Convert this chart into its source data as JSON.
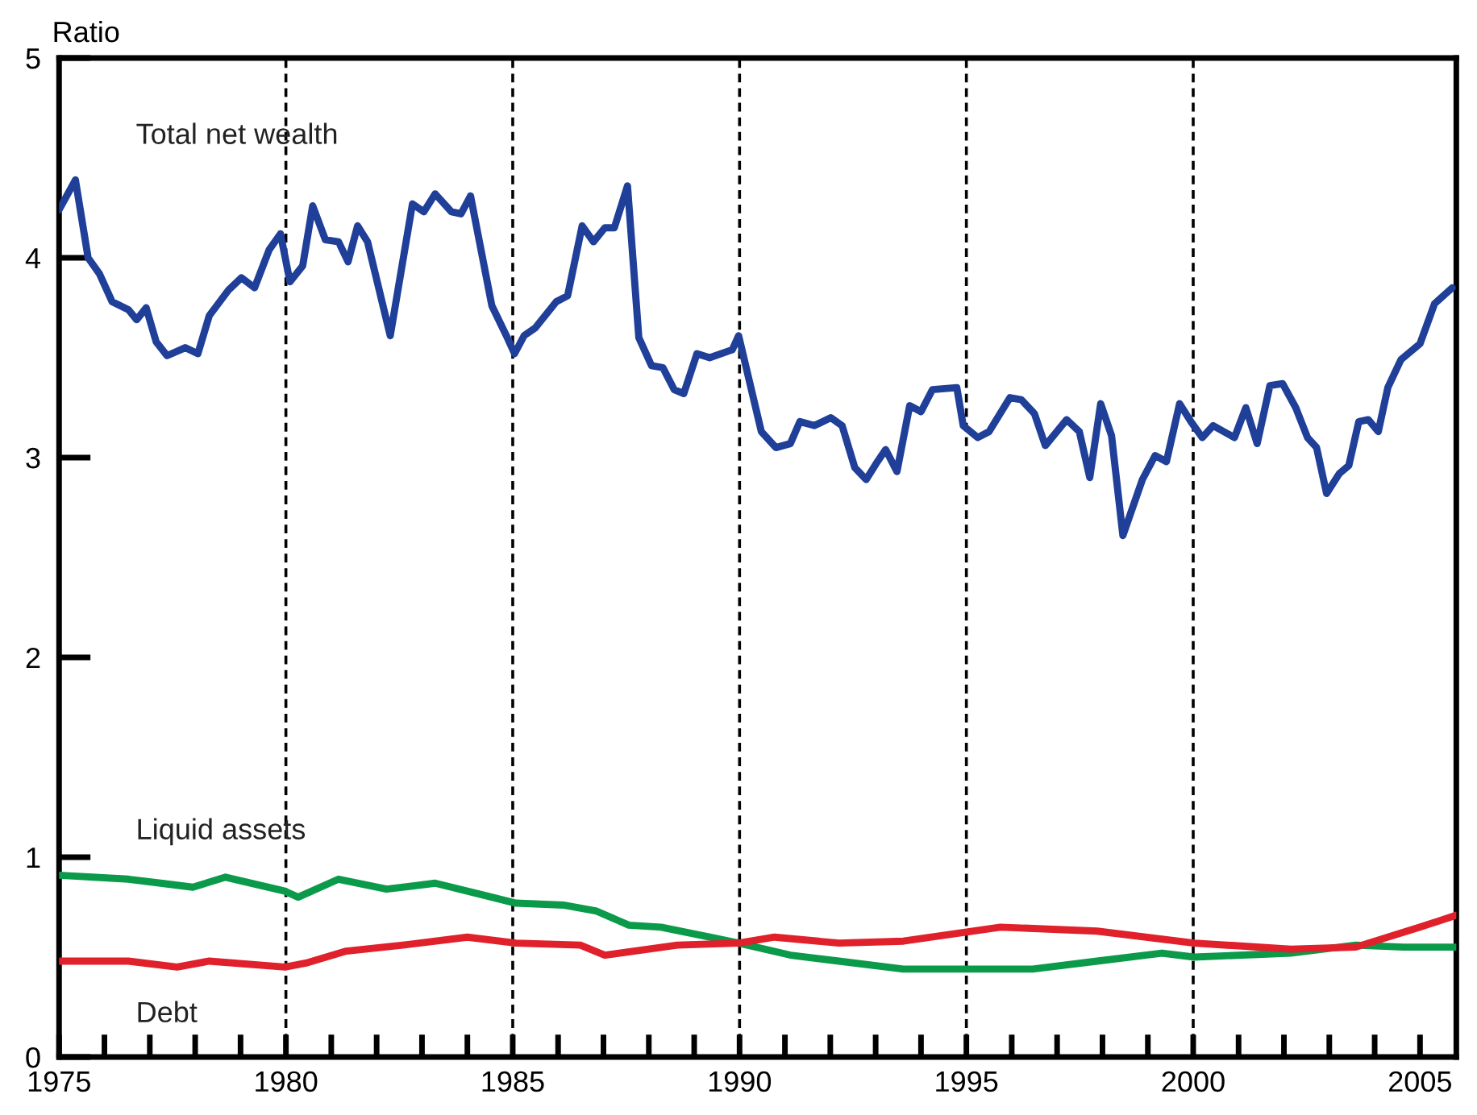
{
  "chart_data": {
    "type": "line",
    "ylabel": "Ratio",
    "xlim": [
      1975,
      2005.8
    ],
    "ylim": [
      0,
      5
    ],
    "xticks": [
      1975,
      {
        "value": 1976,
        "label": null
      },
      {
        "value": 1977,
        "label": null
      },
      {
        "value": 1978,
        "label": null
      },
      {
        "value": 1979,
        "label": null
      },
      1980,
      {
        "value": 1981,
        "label": null
      },
      {
        "value": 1982,
        "label": null
      },
      {
        "value": 1983,
        "label": null
      },
      {
        "value": 1984,
        "label": null
      },
      1985,
      {
        "value": 1986,
        "label": null
      },
      {
        "value": 1987,
        "label": null
      },
      {
        "value": 1988,
        "label": null
      },
      {
        "value": 1989,
        "label": null
      },
      1990,
      {
        "value": 1991,
        "label": null
      },
      {
        "value": 1992,
        "label": null
      },
      {
        "value": 1993,
        "label": null
      },
      {
        "value": 1994,
        "label": null
      },
      1995,
      {
        "value": 1996,
        "label": null
      },
      {
        "value": 1997,
        "label": null
      },
      {
        "value": 1998,
        "label": null
      },
      {
        "value": 1999,
        "label": null
      },
      2000,
      {
        "value": 2001,
        "label": null
      },
      {
        "value": 2002,
        "label": null
      },
      {
        "value": 2003,
        "label": null
      },
      {
        "value": 2004,
        "label": null
      },
      2005
    ],
    "yticks": [
      0,
      1,
      2,
      3,
      4,
      5
    ],
    "grid": false,
    "legend": false,
    "marker": "none",
    "line_style": "solid",
    "ref_lines": [
      {
        "axis": "x",
        "value": 1980,
        "color": "#000000",
        "line_style": "dashed"
      },
      {
        "axis": "x",
        "value": 1985,
        "color": "#000000",
        "line_style": "dashed"
      },
      {
        "axis": "x",
        "value": 1990,
        "color": "#000000",
        "line_style": "dashed"
      },
      {
        "axis": "x",
        "value": 1995,
        "color": "#000000",
        "line_style": "dashed"
      },
      {
        "axis": "x",
        "value": 2000,
        "color": "#000000",
        "line_style": "dashed"
      }
    ],
    "series": [
      {
        "name": "Total net wealth",
        "color": "#1f3f99",
        "x": [
          1975.0,
          1975.36,
          1975.64,
          1975.89,
          1976.17,
          1976.53,
          1976.71,
          1976.92,
          1977.14,
          1977.38,
          1977.78,
          1978.06,
          1978.31,
          1978.74,
          1979.02,
          1979.31,
          1979.63,
          1979.88,
          1980.09,
          1980.37,
          1980.59,
          1980.87,
          1981.16,
          1981.37,
          1981.58,
          1981.8,
          1982.3,
          1982.79,
          1983.04,
          1983.29,
          1983.65,
          1983.86,
          1984.07,
          1984.54,
          1984.86,
          1985.04,
          1985.25,
          1985.5,
          1985.96,
          1986.21,
          1986.53,
          1986.78,
          1987.03,
          1987.24,
          1987.53,
          1987.78,
          1988.06,
          1988.31,
          1988.56,
          1988.77,
          1989.06,
          1989.34,
          1989.84,
          1989.98,
          1990.48,
          1990.8,
          1991.12,
          1991.33,
          1991.65,
          1992.01,
          1992.26,
          1992.54,
          1992.79,
          1993.04,
          1993.22,
          1993.47,
          1993.75,
          1994.0,
          1994.25,
          1994.79,
          1994.93,
          1995.25,
          1995.5,
          1995.96,
          1996.21,
          1996.5,
          1996.74,
          1997.21,
          1997.49,
          1997.72,
          1997.96,
          1998.2,
          1998.45,
          1998.88,
          1999.16,
          1999.41,
          1999.7,
          1999.95,
          2000.2,
          2000.44,
          2000.91,
          2001.16,
          2001.41,
          2001.69,
          2001.97,
          2002.26,
          2002.52,
          2002.72,
          2002.94,
          2003.22,
          2003.43,
          2003.65,
          2003.86,
          2004.08,
          2004.29,
          2004.58,
          2005.0,
          2005.32,
          2005.71
        ],
        "values": [
          4.24,
          4.39,
          4.0,
          3.92,
          3.78,
          3.74,
          3.69,
          3.75,
          3.58,
          3.51,
          3.55,
          3.52,
          3.71,
          3.84,
          3.9,
          3.85,
          4.04,
          4.12,
          3.88,
          3.96,
          4.26,
          4.09,
          4.08,
          3.98,
          4.16,
          4.08,
          3.61,
          4.27,
          4.23,
          4.32,
          4.23,
          4.22,
          4.31,
          3.76,
          3.61,
          3.52,
          3.61,
          3.65,
          3.78,
          3.81,
          4.16,
          4.08,
          4.15,
          4.15,
          4.36,
          3.6,
          3.46,
          3.45,
          3.34,
          3.32,
          3.52,
          3.5,
          3.54,
          3.61,
          3.13,
          3.05,
          3.07,
          3.18,
          3.16,
          3.2,
          3.16,
          2.95,
          2.89,
          2.98,
          3.04,
          2.93,
          3.26,
          3.23,
          3.34,
          3.35,
          3.16,
          3.1,
          3.13,
          3.3,
          3.29,
          3.22,
          3.06,
          3.19,
          3.13,
          2.9,
          3.27,
          3.11,
          2.61,
          2.89,
          3.01,
          2.98,
          3.27,
          3.18,
          3.1,
          3.16,
          3.1,
          3.25,
          3.07,
          3.36,
          3.37,
          3.25,
          3.1,
          3.05,
          2.82,
          2.92,
          2.96,
          3.18,
          3.19,
          3.13,
          3.35,
          3.49,
          3.57,
          3.77,
          3.85
        ]
      },
      {
        "name": "Liquid assets",
        "color": "#0b9a4a",
        "x": [
          1975.0,
          1976.53,
          1977.24,
          1977.95,
          1978.67,
          1979.98,
          1980.27,
          1981.16,
          1982.22,
          1983.29,
          1984.36,
          1985.07,
          1986.14,
          1986.85,
          1987.56,
          1988.27,
          1989.34,
          1989.98,
          1991.12,
          1992.19,
          1993.61,
          1995.04,
          1996.46,
          1997.88,
          1999.31,
          2000.02,
          2002.15,
          2003.58,
          2004.64,
          2005.8
        ],
        "values": [
          0.91,
          0.89,
          0.87,
          0.85,
          0.9,
          0.83,
          0.8,
          0.89,
          0.84,
          0.87,
          0.81,
          0.77,
          0.76,
          0.73,
          0.66,
          0.65,
          0.6,
          0.57,
          0.51,
          0.48,
          0.44,
          0.44,
          0.44,
          0.48,
          0.52,
          0.5,
          0.52,
          0.56,
          0.55,
          0.55
        ]
      },
      {
        "name": "Debt",
        "color": "#e0202a",
        "x": [
          1975.0,
          1976.53,
          1977.6,
          1978.31,
          1979.98,
          1980.44,
          1981.33,
          1982.58,
          1984.0,
          1985.07,
          1986.49,
          1987.03,
          1988.63,
          1989.98,
          1990.77,
          1992.19,
          1993.61,
          1995.75,
          1997.88,
          2000.02,
          2002.15,
          2003.58,
          2005.0,
          2005.8
        ],
        "values": [
          0.48,
          0.48,
          0.45,
          0.48,
          0.45,
          0.47,
          0.53,
          0.56,
          0.6,
          0.57,
          0.56,
          0.51,
          0.56,
          0.57,
          0.6,
          0.57,
          0.58,
          0.65,
          0.63,
          0.57,
          0.54,
          0.55,
          0.65,
          0.71
        ]
      }
    ]
  }
}
